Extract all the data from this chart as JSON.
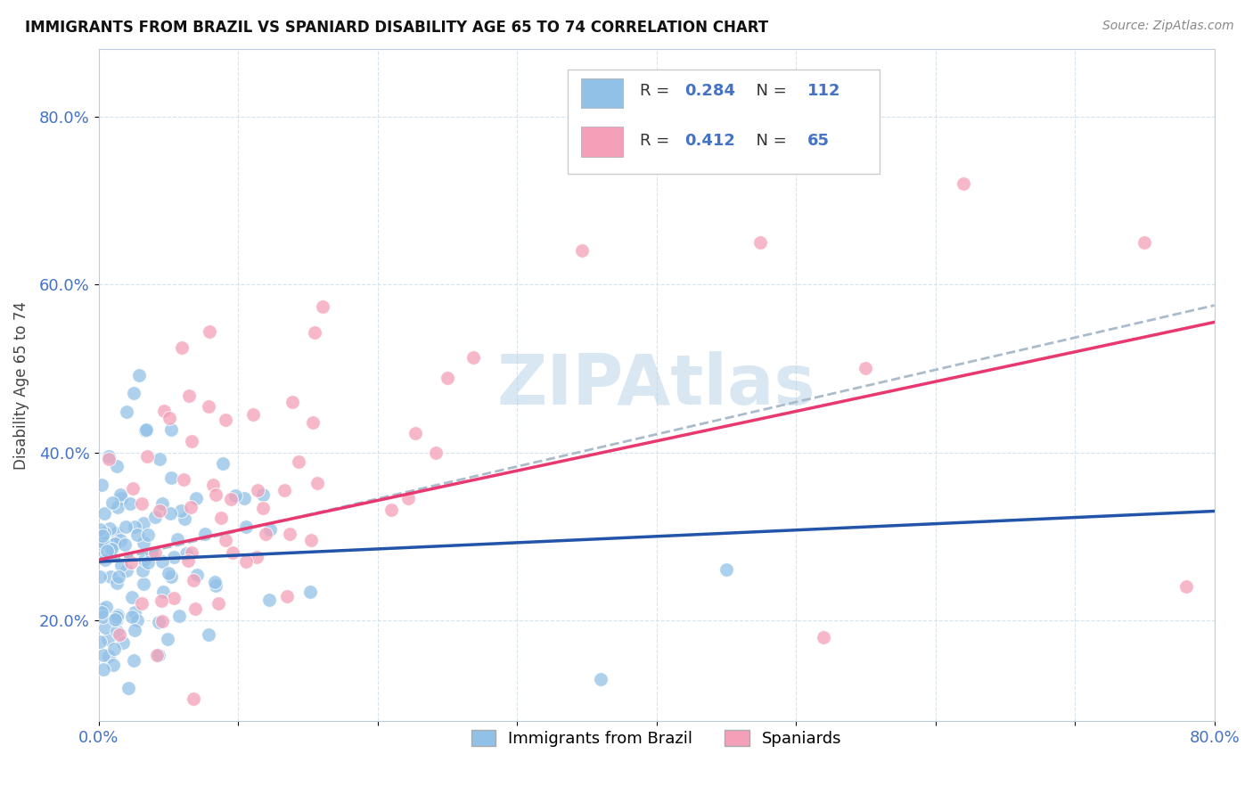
{
  "title": "IMMIGRANTS FROM BRAZIL VS SPANIARD DISABILITY AGE 65 TO 74 CORRELATION CHART",
  "source": "Source: ZipAtlas.com",
  "ylabel": "Disability Age 65 to 74",
  "legend_label1": "Immigrants from Brazil",
  "legend_label2": "Spaniards",
  "r1": 0.284,
  "n1": 112,
  "r2": 0.412,
  "n2": 65,
  "blue_color": "#92C1E8",
  "pink_color": "#F4A0B8",
  "blue_line_color": "#2255AA",
  "pink_line_color": "#E83870",
  "dash_line_color": "#AABBCC",
  "watermark_color": "#B8D4E8",
  "xmin": 0.0,
  "xmax": 0.8,
  "ymin": 0.08,
  "ymax": 0.88,
  "blue_line_y0": 0.27,
  "blue_line_y1": 0.33,
  "pink_line_y0": 0.272,
  "pink_line_y1": 0.555,
  "dash_line_y0": 0.268,
  "dash_line_y1": 0.575
}
